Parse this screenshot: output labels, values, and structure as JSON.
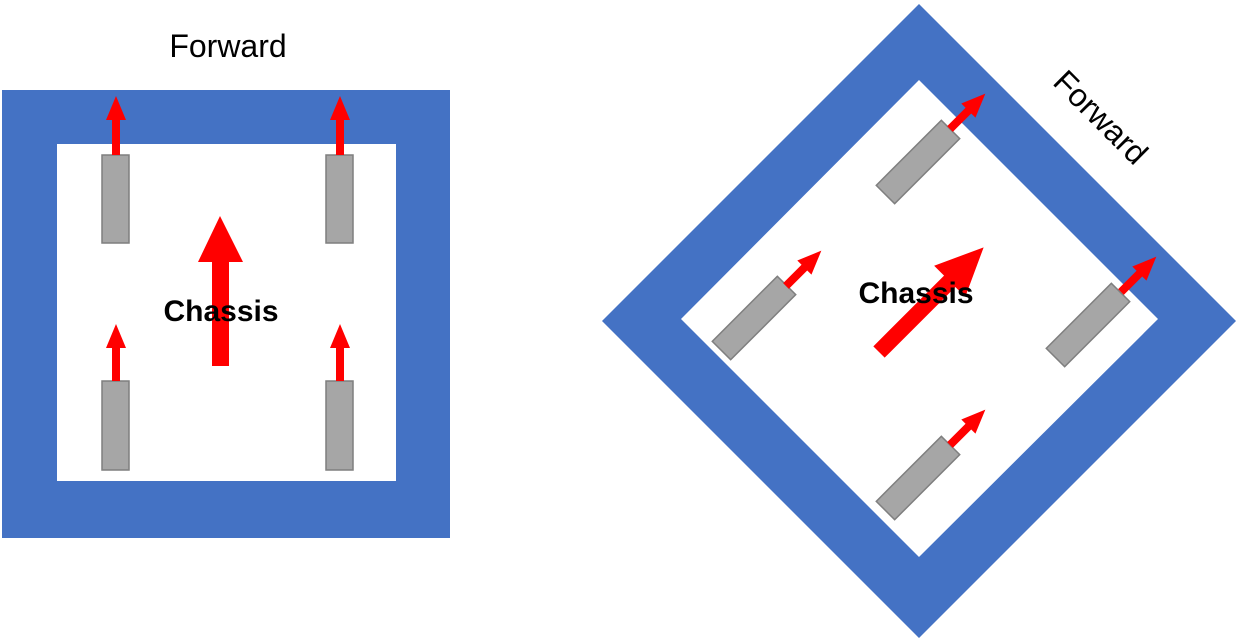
{
  "left_diagram": {
    "forward_label": "Forward",
    "center_label": "Chassis"
  },
  "right_diagram": {
    "forward_label": "Forward",
    "center_label": "Chassis"
  },
  "colors": {
    "frame": "#4472c4",
    "wheel": "#a6a6a6",
    "wheel_border": "#7f7f7f",
    "arrow": "#ff0000",
    "text": "#000000"
  }
}
